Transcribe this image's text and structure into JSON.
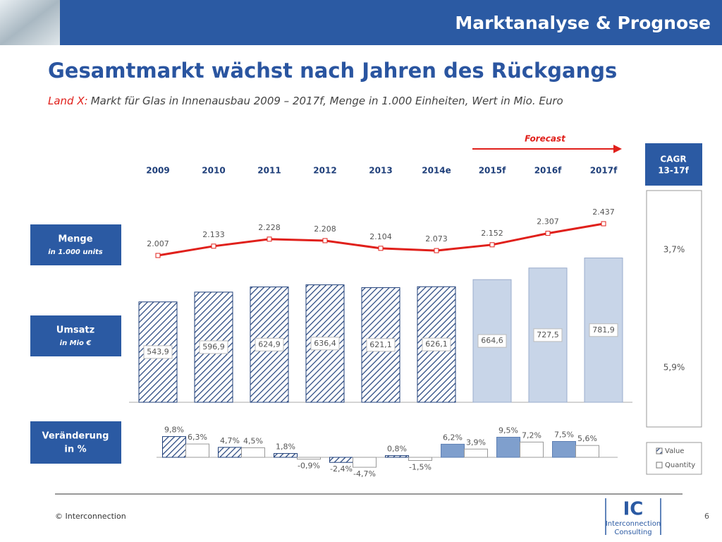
{
  "header": {
    "section": "Marktanalyse & Prognose",
    "title": "Gesamtmarkt wächst nach Jahren des Rückgangs",
    "subtitle_lead": "Land X:",
    "subtitle": "Markt für Glas in Innenausbau 2009 – 2017f, Menge in 1.000 Einheiten, Wert in Mio. Euro"
  },
  "forecast": "Forecast",
  "cagr": {
    "title": "CAGR",
    "subtitle": "13-17f",
    "values": [
      3.7,
      5.9
    ],
    "value_labels": [
      "3,7%",
      "5,9%"
    ]
  },
  "chart_data": [
    {
      "type": "line",
      "label": "Menge",
      "sublabel": "in 1.000 units",
      "categories": [
        "2009",
        "2010",
        "2011",
        "2012",
        "2013",
        "2014e",
        "2015f",
        "2016f",
        "2017f"
      ],
      "values": [
        2007,
        2133,
        2228,
        2208,
        2104,
        2073,
        2152,
        2307,
        2437
      ],
      "value_labels": [
        "2.007",
        "2.133",
        "2.228",
        "2.208",
        "2.104",
        "2.073",
        "2.152",
        "2.307",
        "2.437"
      ],
      "color": "#e0201b"
    },
    {
      "type": "bar",
      "label": "Umsatz",
      "sublabel": "in Mio €",
      "values": [
        543.9,
        596.9,
        624.9,
        636.4,
        621.1,
        626.1,
        664.6,
        727.5,
        781.9
      ],
      "value_labels": [
        "543,9",
        "596,9",
        "624,9",
        "636,4",
        "621,1",
        "626,1",
        "664,6",
        "727,5",
        "781,9"
      ],
      "bar_styles": [
        "hatched",
        "hatched",
        "hatched",
        "hatched",
        "hatched",
        "hatched",
        "solid",
        "solid",
        "solid"
      ],
      "color": "#c8d5e8"
    },
    {
      "type": "grouped_bar",
      "label": "Veränderung",
      "sublabel": "in %",
      "legend": "right",
      "series": [
        {
          "name": "Value",
          "color": "#7f9fcd",
          "values": [
            9.8,
            4.7,
            1.8,
            -2.4,
            0.8,
            6.2,
            9.5,
            7.5
          ],
          "value_labels": [
            "9,8%",
            "4,7%",
            "1,8%",
            "-2,4%",
            "0,8%",
            "6,2%",
            "9,5%",
            "7,5%"
          ],
          "bar_styles": [
            "hatched",
            "hatched",
            "hatched",
            "hatched",
            "hatched",
            "solid",
            "solid",
            "solid"
          ]
        },
        {
          "name": "Quantity",
          "color": "#ffffff",
          "values": [
            6.3,
            4.5,
            -0.9,
            -4.7,
            -1.5,
            3.9,
            7.2,
            5.6
          ],
          "value_labels": [
            "6,3%",
            "4,5%",
            "-0,9%",
            "-4,7%",
            "-1,5%",
            "3,9%",
            "7,2%",
            "5,6%"
          ]
        }
      ]
    }
  ],
  "footer": {
    "copyright": "© Interconnection",
    "page": "6",
    "logo": "IC",
    "logo_line1": "Interconnection",
    "logo_line2": "Consulting"
  }
}
